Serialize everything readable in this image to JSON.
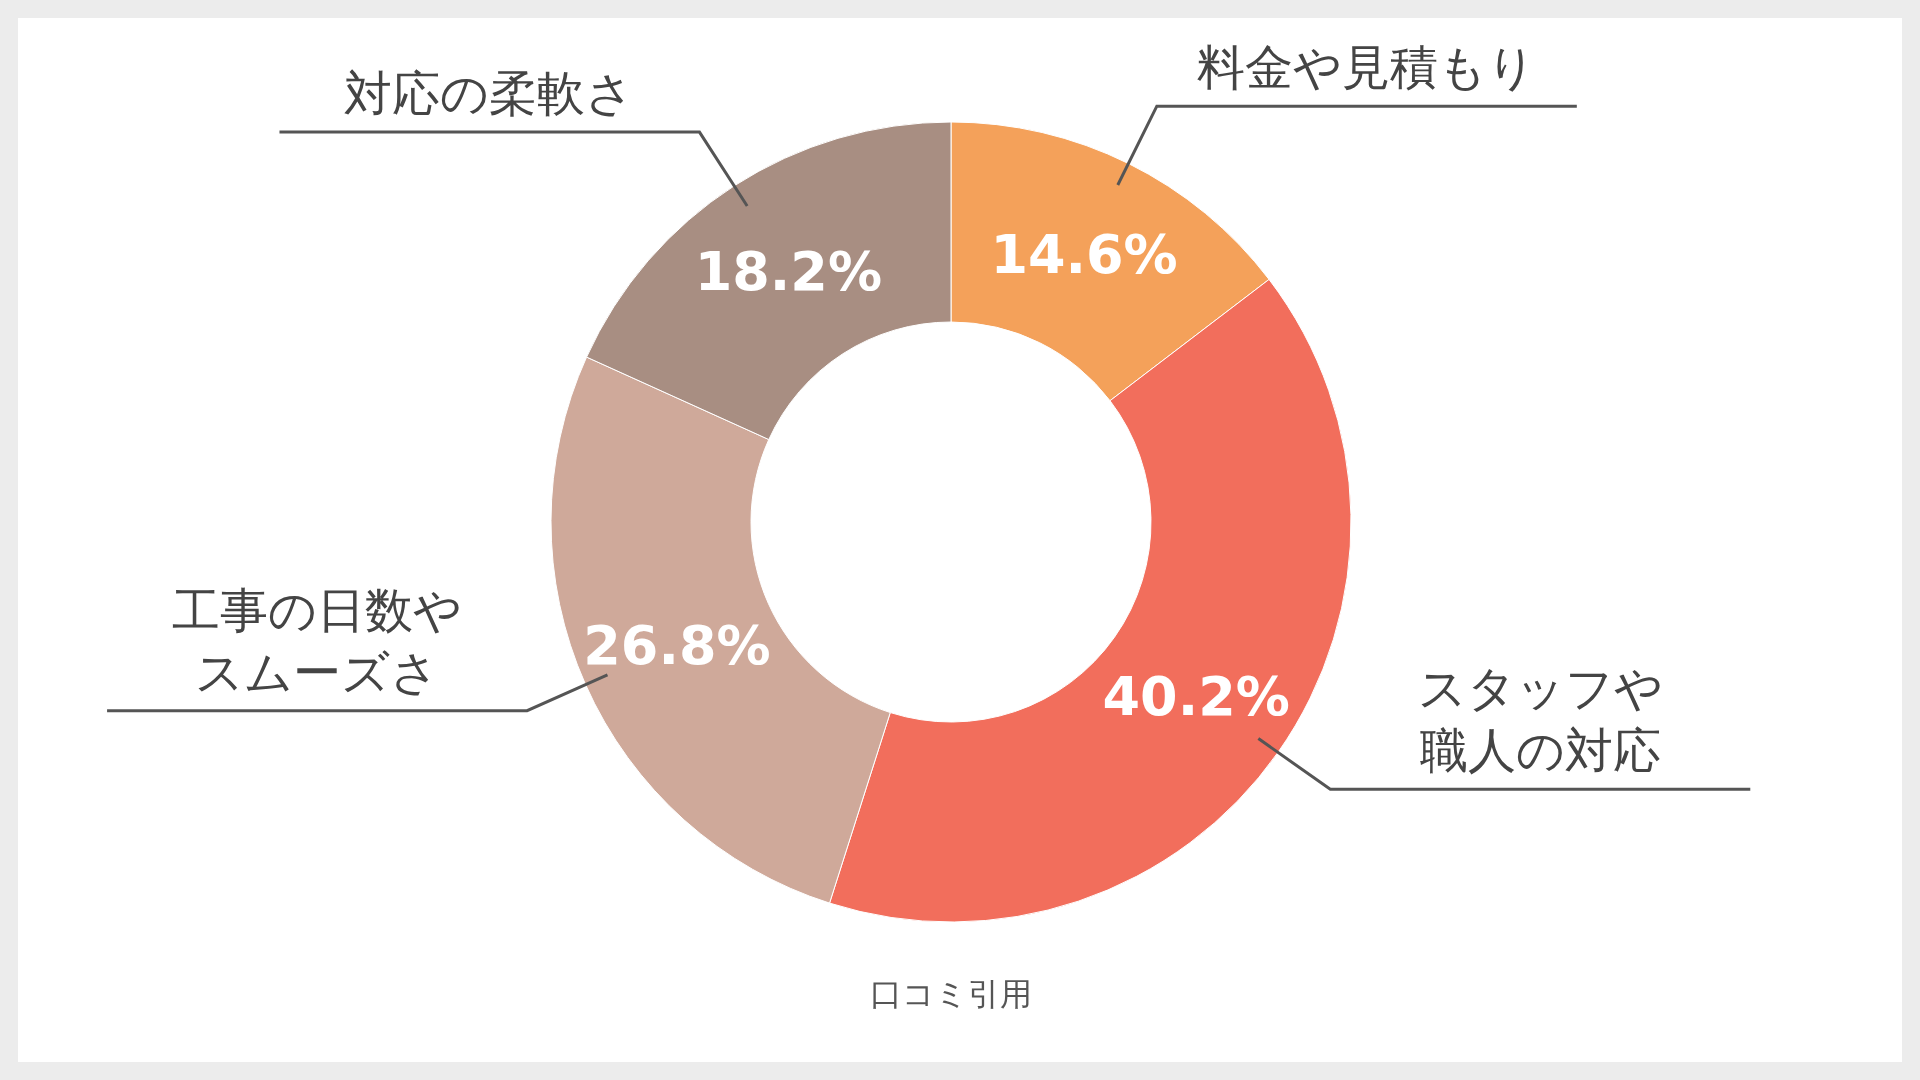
{
  "chart_data": {
    "type": "donut",
    "categories": [
      "料金や見積もり",
      "スタッフや職人の対応",
      "工事の日数やスムーズさ",
      "対応の柔軟さ"
    ],
    "values": [
      14.6,
      40.2,
      26.8,
      18.2
    ],
    "colors": [
      "#f4a15a",
      "#f26e5c",
      "#cfa99a",
      "#a88e82"
    ],
    "value_labels": [
      "14.6%",
      "40.2%",
      "26.8%",
      "18.2%"
    ],
    "annotations": [
      "口コミ引用"
    ]
  }
}
